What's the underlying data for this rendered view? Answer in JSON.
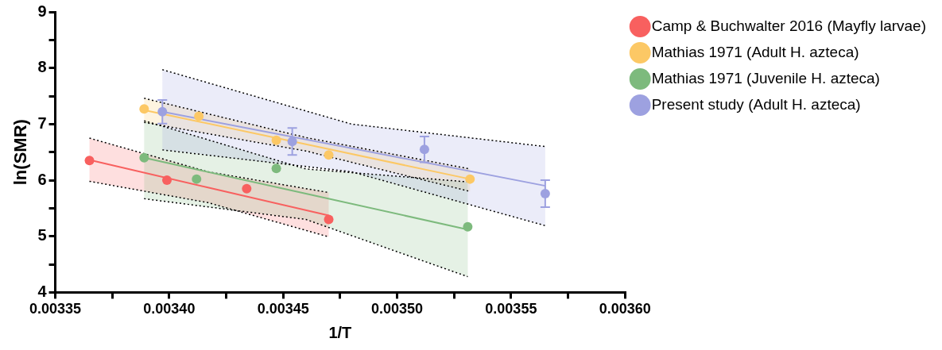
{
  "chart_data": {
    "type": "scatter",
    "xlabel": "1/T",
    "ylabel": "ln(SMR)",
    "xlim": [
      0.00335,
      0.0036
    ],
    "ylim": [
      4,
      9
    ],
    "xticks": [
      {
        "value": 0.00335,
        "label": "0.00335"
      },
      {
        "value": 0.003375,
        "label": null
      },
      {
        "value": 0.0034,
        "label": "0.00340"
      },
      {
        "value": 0.003425,
        "label": null
      },
      {
        "value": 0.00345,
        "label": "0.00345"
      },
      {
        "value": 0.003475,
        "label": null
      },
      {
        "value": 0.0035,
        "label": "0.00350"
      },
      {
        "value": 0.003525,
        "label": null
      },
      {
        "value": 0.00355,
        "label": "0.00355"
      },
      {
        "value": 0.003575,
        "label": null
      },
      {
        "value": 0.0036,
        "label": "0.00360"
      }
    ],
    "yticks": [
      4,
      {
        "value": 4.5,
        "label": null
      },
      5,
      {
        "value": 5.5,
        "label": null
      },
      6,
      {
        "value": 6.5,
        "label": null
      },
      7,
      {
        "value": 7.5,
        "label": null
      },
      8,
      {
        "value": 8.5,
        "label": null
      },
      9
    ],
    "grid": false,
    "legend": "top right",
    "marker": "circle",
    "series": [
      {
        "type": "line",
        "marker": "none",
        "color": "#f8605f",
        "x": [
          0.003365,
          0.003417,
          0.00347
        ],
        "values": [
          6.36,
          5.87,
          5.37
        ],
        "upper": [
          6.75,
          6.15,
          5.78
        ],
        "lower": [
          5.98,
          5.6,
          4.99
        ]
      },
      {
        "type": "line",
        "marker": "none",
        "color": "#fcc865",
        "x": [
          0.003389,
          0.00346,
          0.003532
        ],
        "values": [
          7.25,
          6.64,
          6.02
        ],
        "upper": [
          7.46,
          6.76,
          6.2
        ],
        "lower": [
          7.03,
          6.52,
          5.8
        ]
      },
      {
        "type": "line",
        "marker": "none",
        "color": "#7dba7d",
        "x": [
          0.003389,
          0.00346,
          0.003531
        ],
        "values": [
          6.4,
          5.76,
          5.12
        ],
        "upper": [
          7.06,
          6.2,
          5.97
        ],
        "lower": [
          5.67,
          5.3,
          4.28
        ]
      },
      {
        "type": "line",
        "marker": "none",
        "color": "#9da1e0",
        "x": [
          0.003397,
          0.00348,
          0.003565
        ],
        "values": [
          7.22,
          6.57,
          5.9
        ],
        "upper": [
          7.97,
          7.0,
          6.6
        ],
        "lower": [
          6.54,
          6.15,
          5.19
        ]
      },
      {
        "type": "line",
        "marker": "none",
        "line_style": "dotted",
        "color": "#000000",
        "x": [
          0.003365,
          0.003417,
          0.00347
        ],
        "values": [
          6.75,
          6.15,
          5.78
        ]
      },
      {
        "type": "line",
        "marker": "none",
        "line_style": "dotted",
        "color": "#000000",
        "x": [
          0.003365,
          0.003417,
          0.00347
        ],
        "values": [
          5.98,
          5.6,
          4.99
        ]
      },
      {
        "type": "line",
        "marker": "none",
        "line_style": "dotted",
        "color": "#000000",
        "x": [
          0.003389,
          0.00346,
          0.003532
        ],
        "values": [
          7.46,
          6.76,
          6.2
        ]
      },
      {
        "type": "line",
        "marker": "none",
        "line_style": "dotted",
        "color": "#000000",
        "x": [
          0.003389,
          0.00346,
          0.003532
        ],
        "values": [
          7.03,
          6.52,
          5.8
        ]
      },
      {
        "type": "line",
        "marker": "none",
        "line_style": "dotted",
        "color": "#000000",
        "x": [
          0.003389,
          0.00346,
          0.003531
        ],
        "values": [
          7.06,
          6.2,
          5.97
        ]
      },
      {
        "type": "line",
        "marker": "none",
        "line_style": "dotted",
        "color": "#000000",
        "x": [
          0.003389,
          0.00346,
          0.003531
        ],
        "values": [
          5.67,
          5.3,
          4.28
        ]
      },
      {
        "type": "line",
        "marker": "none",
        "line_style": "dotted",
        "color": "#000000",
        "x": [
          0.003397,
          0.00348,
          0.003565
        ],
        "values": [
          7.97,
          7.0,
          6.6
        ]
      },
      {
        "type": "line",
        "marker": "none",
        "line_style": "dotted",
        "color": "#000000",
        "x": [
          0.003397,
          0.00348,
          0.003565
        ],
        "values": [
          6.54,
          6.15,
          5.19
        ]
      },
      {
        "name": "Camp & Buchwalter 2016 (Mayfly larvae)",
        "color": "#f8605f",
        "x": [
          0.003365,
          0.003399,
          0.003434,
          0.00347
        ],
        "values": [
          6.35,
          6.0,
          5.85,
          5.3
        ]
      },
      {
        "name": "Mathias 1971 (Adult H. azteca)",
        "color": "#fcc865",
        "x": [
          0.003389,
          0.003413,
          0.003447,
          0.00347,
          0.003532
        ],
        "values": [
          7.27,
          7.14,
          6.71,
          6.45,
          6.02
        ]
      },
      {
        "name": "Mathias 1971 (Juvenile H. azteca)",
        "color": "#7dba7d",
        "x": [
          0.003389,
          0.003412,
          0.003447,
          0.003531
        ],
        "values": [
          6.4,
          6.02,
          6.21,
          5.17
        ]
      },
      {
        "name": "Present study (Adult H. azteca)",
        "color": "#9da1e0",
        "x": [
          0.003397,
          0.003454,
          0.003512,
          0.003565
        ],
        "values": [
          7.22,
          6.69,
          6.55,
          5.76
        ],
        "errors": [
          0.21,
          0.24,
          0.23,
          0.24
        ]
      }
    ]
  }
}
